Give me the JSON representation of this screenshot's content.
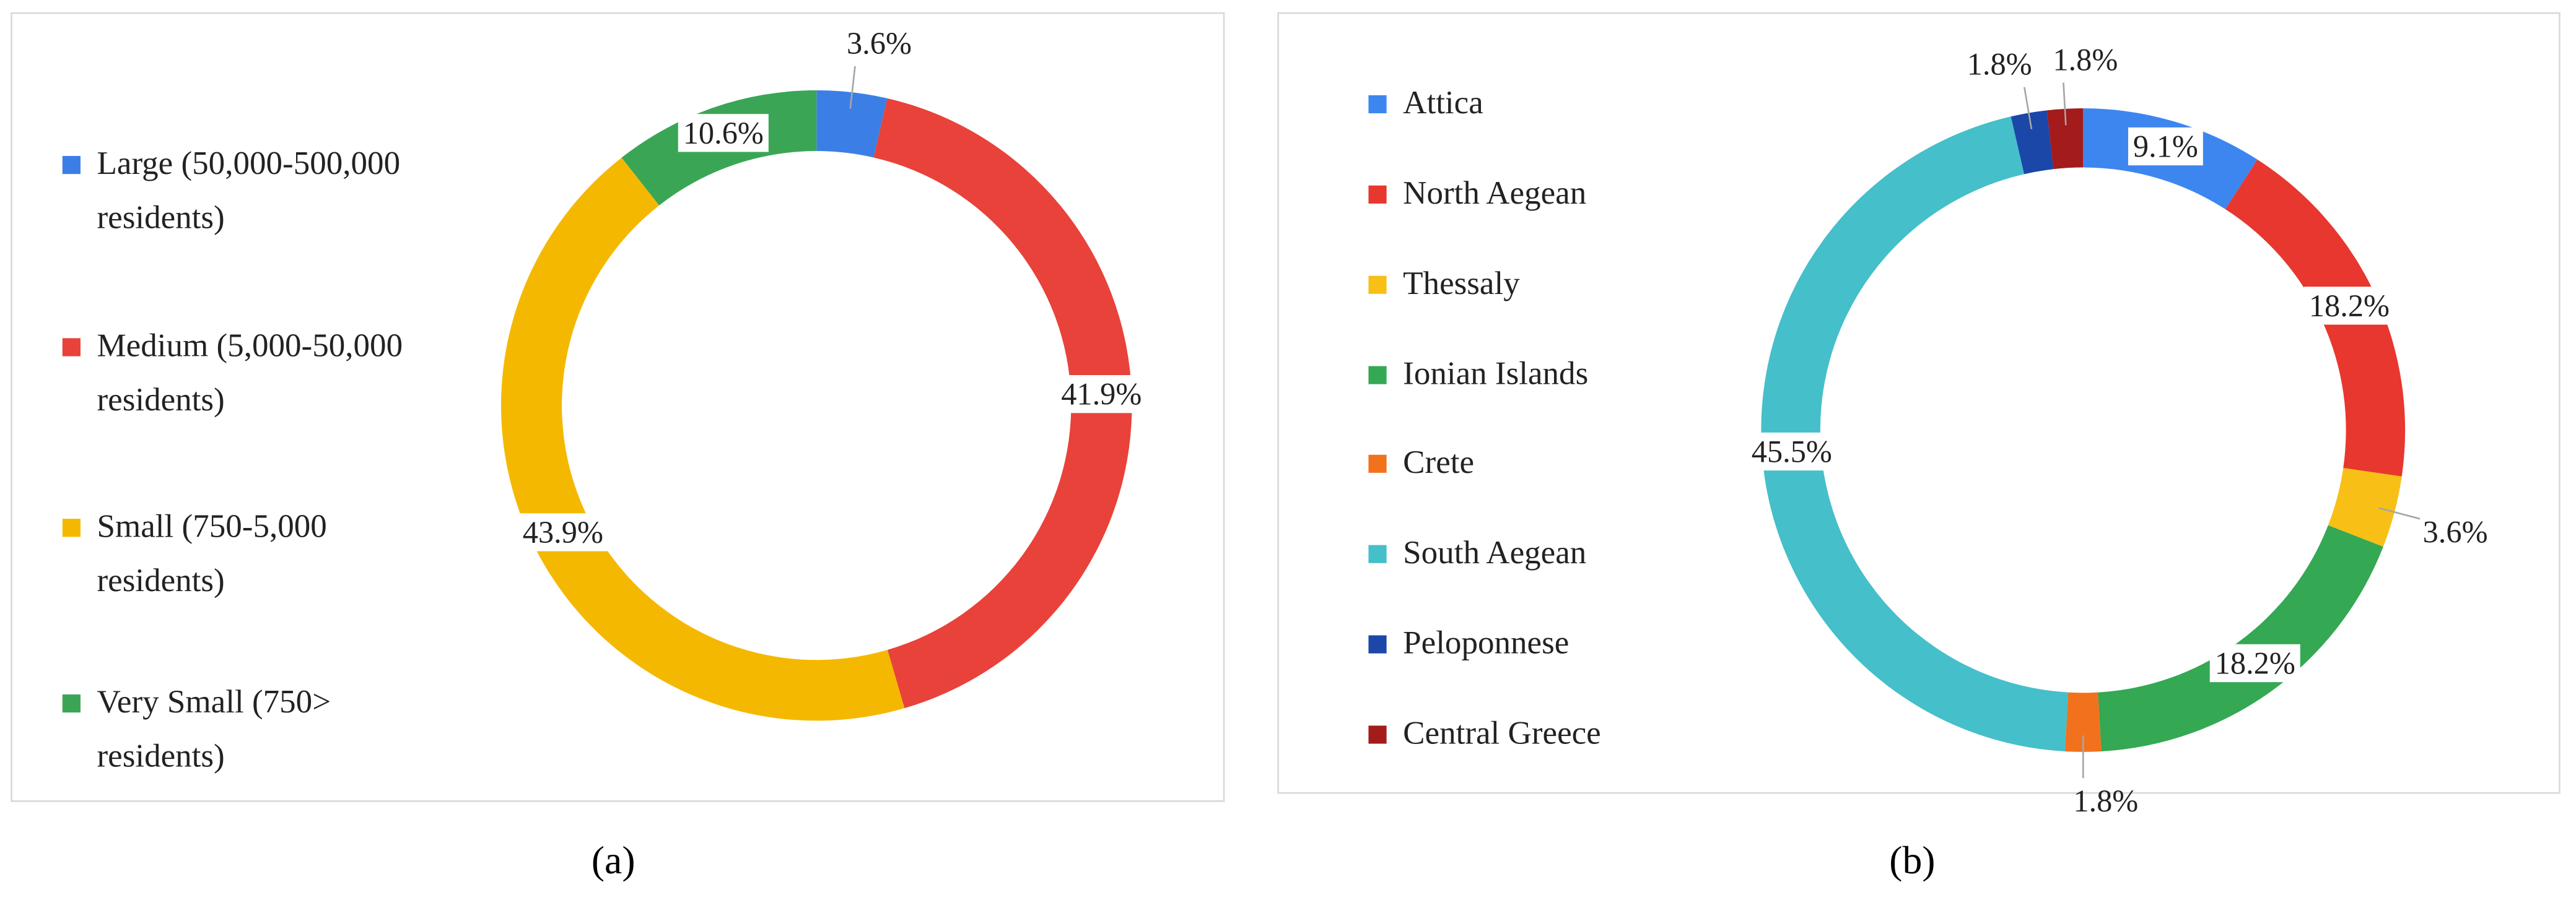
{
  "chart_data": [
    {
      "type": "donut",
      "label": "(a)",
      "categories": [
        "Large (50,000-500,000 residents)",
        "Medium (5,000-50,000 residents)",
        "Small (750-5,000 residents)",
        "Very Small (750> residents)"
      ],
      "series": [
        {
          "colors": [
            "#3b7fe6",
            "#e8423a",
            "#f5b800",
            "#3aa655"
          ],
          "values": [
            3.6,
            41.9,
            43.9,
            10.6
          ],
          "value_labels": [
            "3.6%",
            "41.9%",
            "43.9%",
            "10.6%"
          ]
        }
      ],
      "legend": "left"
    },
    {
      "type": "donut",
      "label": "(b)",
      "categories": [
        "Attica",
        "North Aegean",
        "Thessaly",
        "Ionian Islands",
        "Crete",
        "South Aegean",
        "Peloponnese",
        "Central Greece"
      ],
      "series": [
        {
          "colors": [
            "#3d86f0",
            "#e8372e",
            "#f8bf16",
            "#34a853",
            "#f2711c",
            "#45bfc9",
            "#1a47a8",
            "#a31b1b"
          ],
          "values": [
            9.1,
            18.2,
            3.6,
            18.2,
            1.8,
            45.5,
            1.8,
            1.8
          ],
          "value_labels": [
            "9.1%",
            "18.2%",
            "3.6%",
            "18.2%",
            "1.8%",
            "45.5%",
            "1.8%",
            "1.8%"
          ]
        }
      ],
      "legend": "left"
    }
  ]
}
